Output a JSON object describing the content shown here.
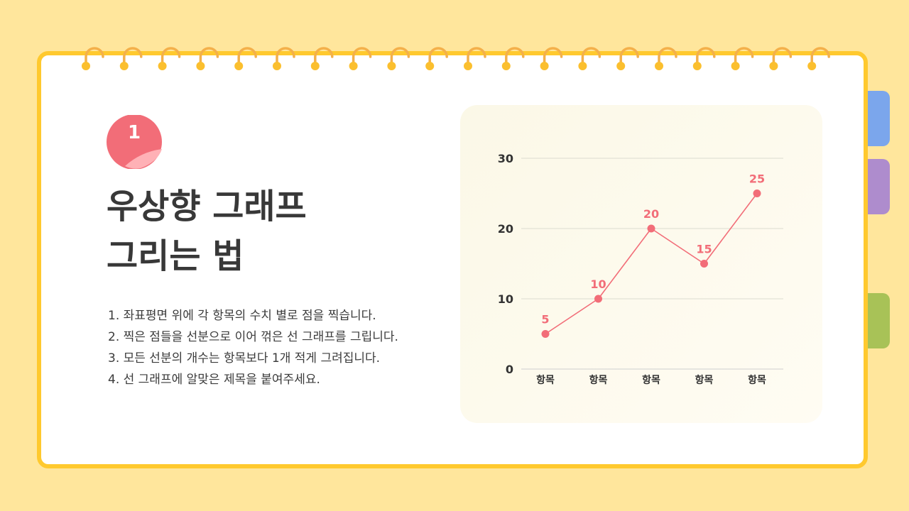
{
  "badge": {
    "number": "1"
  },
  "title": {
    "line1": "우상향 그래프",
    "line2": "그리는 법"
  },
  "steps": [
    "1. 좌표평면 위에 각 항목의 수치 별로 점을 찍습니다.",
    "2. 찍은 점들을 선분으로 이어 꺾은 선 그래프를 그립니다.",
    "3. 모든 선분의 개수는 항목보다 1개 적게 그려집니다.",
    "4. 선 그래프에 알맞은 제목을 붙여주세요."
  ],
  "colors": {
    "background": "#FFE69C",
    "frame": "#FFC92E",
    "accent": "#F26D78",
    "tab_blue": "#7BA6EC",
    "tab_purple": "#AE8CCD",
    "tab_green": "#A8C257",
    "text": "#383838"
  },
  "icons": {
    "binder_ring": "binder-ring-icon"
  },
  "chart_data": {
    "type": "line",
    "categories": [
      "항목",
      "항목",
      "항목",
      "항목",
      "항목"
    ],
    "values": [
      5,
      10,
      20,
      15,
      25
    ],
    "data_labels": [
      "5",
      "10",
      "20",
      "15",
      "25"
    ],
    "y_ticks": [
      "0",
      "10",
      "20",
      "30"
    ],
    "ylim": [
      0,
      30
    ],
    "grid": true,
    "legend": "none",
    "title": "",
    "xlabel": "",
    "ylabel": ""
  }
}
